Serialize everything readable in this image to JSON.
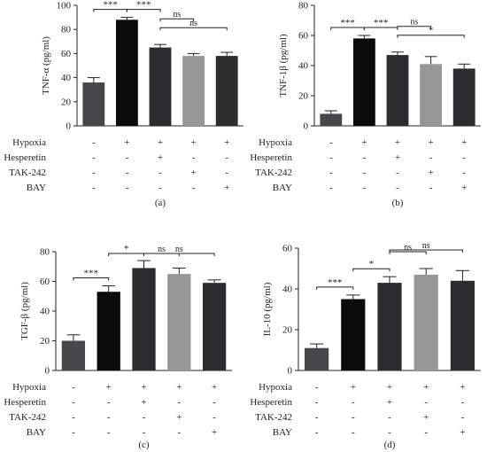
{
  "colors": {
    "axis": "#222222",
    "error_bar": "#222222",
    "bracket": "#222222"
  },
  "chart_data": [
    {
      "type": "bar",
      "panel_label": "(a)",
      "ylabel": "TNF-α (pg/ml)",
      "ylim": [
        0,
        100
      ],
      "yticks": [
        "0",
        "20",
        "40",
        "60",
        "80",
        "100"
      ],
      "ytick_values": [
        0,
        20,
        40,
        60,
        80,
        100
      ],
      "categories": [
        "Control",
        "Hypoxia",
        "Hypoxia+Hesperetin",
        "Hypoxia+TAK-242",
        "Hypoxia+BAY"
      ],
      "values": [
        36,
        88,
        65,
        58,
        58
      ],
      "errors": [
        4,
        2,
        2.5,
        2,
        3
      ],
      "bar_colors": [
        "#47474a",
        "#0b0b0b",
        "#2c2c2e",
        "#979797",
        "#2c2c2e"
      ],
      "significance": [
        {
          "from": 0,
          "to": 1,
          "label": "***",
          "level": 0
        },
        {
          "from": 1,
          "to": 2,
          "label": "***",
          "level": 0
        },
        {
          "from": 2,
          "to": 4,
          "label": "ns",
          "level": 1
        },
        {
          "from": 2,
          "to": 3,
          "label": "ns",
          "level": 2
        }
      ]
    },
    {
      "type": "bar",
      "panel_label": "(b)",
      "ylabel": "TNF-1β (pg/ml)",
      "ylim": [
        0,
        80
      ],
      "yticks": [
        "0",
        "20",
        "40",
        "60",
        "80"
      ],
      "ytick_values": [
        0,
        20,
        40,
        60,
        80
      ],
      "categories": [
        "Control",
        "Hypoxia",
        "Hypoxia+Hesperetin",
        "Hypoxia+TAK-242",
        "Hypoxia+BAY"
      ],
      "values": [
        8,
        58,
        47,
        41,
        38
      ],
      "errors": [
        2,
        2,
        2,
        5,
        3
      ],
      "bar_colors": [
        "#47474a",
        "#0b0b0b",
        "#2c2c2e",
        "#979797",
        "#2c2c2e"
      ],
      "significance": [
        {
          "from": 0,
          "to": 1,
          "label": "***",
          "level": 0
        },
        {
          "from": 1,
          "to": 2,
          "label": "***",
          "level": 0
        },
        {
          "from": 2,
          "to": 3,
          "label": "ns",
          "level": 2
        },
        {
          "from": 2,
          "to": 4,
          "label": "*",
          "level": 1
        }
      ]
    },
    {
      "type": "bar",
      "panel_label": "(c)",
      "ylabel": "TGF-β (pg/ml)",
      "ylim": [
        0,
        80
      ],
      "yticks": [
        "0",
        "20",
        "40",
        "60",
        "80"
      ],
      "ytick_values": [
        0,
        20,
        40,
        60,
        80
      ],
      "categories": [
        "Control",
        "Hypoxia",
        "Hypoxia+Hesperetin",
        "Hypoxia+TAK-242",
        "Hypoxia+BAY"
      ],
      "values": [
        20,
        53,
        69,
        65,
        59
      ],
      "errors": [
        4,
        4,
        5,
        4,
        2
      ],
      "bar_colors": [
        "#47474a",
        "#0b0b0b",
        "#2c2c2e",
        "#979797",
        "#2c2c2e"
      ],
      "significance": [
        {
          "from": 0,
          "to": 1,
          "label": "***",
          "level": 0
        },
        {
          "from": 1,
          "to": 2,
          "label": "*",
          "level": 0
        },
        {
          "from": 2,
          "to": 3,
          "label": "ns",
          "level": 1
        },
        {
          "from": 2,
          "to": 4,
          "label": "ns",
          "level": 2
        }
      ]
    },
    {
      "type": "bar",
      "panel_label": "(d)",
      "ylabel": "IL-10 (pg/ml)",
      "ylim": [
        0,
        60
      ],
      "yticks": [
        "0",
        "20",
        "40",
        "60"
      ],
      "ytick_values": [
        0,
        20,
        40,
        60
      ],
      "categories": [
        "Control",
        "Hypoxia",
        "Hypoxia+Hesperetin",
        "Hypoxia+TAK-242",
        "Hypoxia+BAY"
      ],
      "values": [
        11,
        35,
        43,
        47,
        44
      ],
      "errors": [
        2,
        2,
        3,
        3,
        5
      ],
      "bar_colors": [
        "#47474a",
        "#0b0b0b",
        "#2c2c2e",
        "#979797",
        "#2c2c2e"
      ],
      "significance": [
        {
          "from": 0,
          "to": 1,
          "label": "***",
          "level": 0
        },
        {
          "from": 1,
          "to": 2,
          "label": "*",
          "level": 0
        },
        {
          "from": 2,
          "to": 3,
          "label": "ns",
          "level": 1
        },
        {
          "from": 2,
          "to": 4,
          "label": "ns",
          "level": 2
        }
      ]
    }
  ],
  "treatment_table": {
    "rows": [
      {
        "label": "Hypoxia",
        "signs": [
          "-",
          "+",
          "+",
          "+",
          "+"
        ]
      },
      {
        "label": "Hesperetin",
        "signs": [
          "-",
          "-",
          "+",
          "-",
          "-"
        ]
      },
      {
        "label": "TAK-242",
        "signs": [
          "-",
          "-",
          "-",
          "+",
          "-"
        ]
      },
      {
        "label": "BAY",
        "signs": [
          "-",
          "-",
          "-",
          "-",
          "+"
        ]
      }
    ]
  }
}
